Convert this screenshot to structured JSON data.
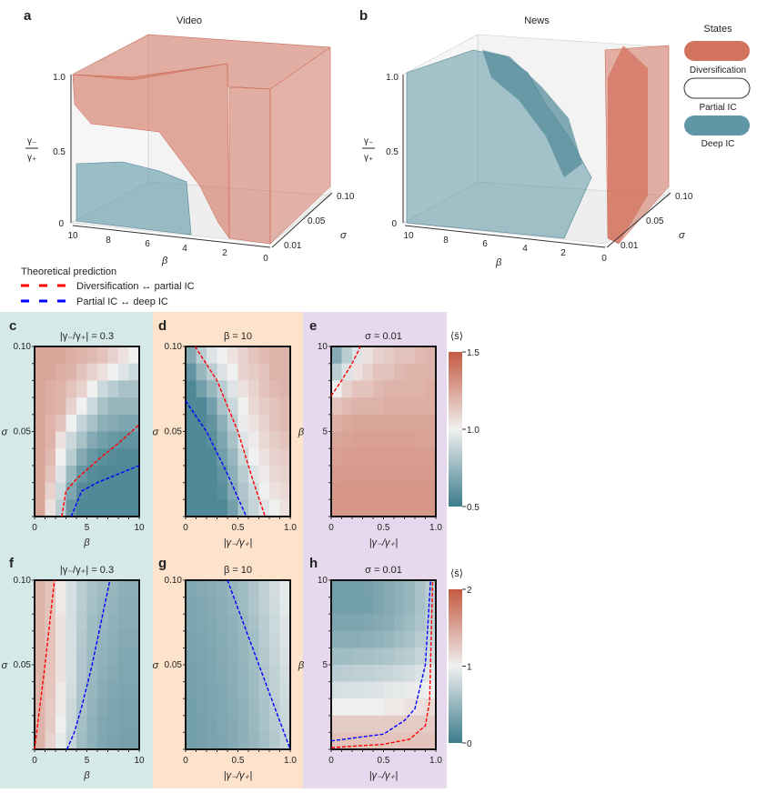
{
  "panel_letters": [
    "a",
    "b",
    "c",
    "d",
    "e",
    "f",
    "g",
    "h"
  ],
  "surface_panels": [
    {
      "title": "Video",
      "zlabel_num": "γ₋",
      "zlabel_den": "γ₊",
      "zticks": [
        "1.0",
        "0.5",
        "0"
      ],
      "beta_ticks": [
        "10",
        "8",
        "6",
        "4",
        "2",
        "0"
      ],
      "sigma_ticks": [
        "0.10",
        "0.05",
        "0.01"
      ],
      "xlabel": "β",
      "ylabel": "σ"
    },
    {
      "title": "News",
      "zlabel_num": "γ₋",
      "zlabel_den": "γ₊",
      "zticks": [
        "1.0",
        "0.5",
        "0"
      ],
      "beta_ticks": [
        "10",
        "8",
        "6",
        "4",
        "2",
        "0"
      ],
      "sigma_ticks": [
        "0.10",
        "0.05",
        "0.01"
      ],
      "xlabel": "β",
      "ylabel": "σ"
    }
  ],
  "states_legend": {
    "title": "States",
    "items": [
      {
        "label": "Diversification",
        "color": "#d4735f"
      },
      {
        "label": "Partial IC",
        "color": "#ffffff"
      },
      {
        "label": "Deep IC",
        "color": "#5f97a6"
      }
    ]
  },
  "prediction_legend": {
    "title": "Theoretical prediction",
    "items": [
      {
        "label": "Diversification ↔ partial IC",
        "color": "#ff0000"
      },
      {
        "label": "Partial IC ↔ deep IC",
        "color": "#0000ff"
      }
    ]
  },
  "colors": {
    "teal": "#3d7c8c",
    "white": "#f0f0f0",
    "red": "#c45a42",
    "bg_c": "#d5eae8",
    "bg_d": "#fde3cb",
    "bg_e": "#e6d9ee"
  },
  "colorbars": [
    {
      "label": "⟨s̄⟩",
      "range": [
        0.5,
        1.5
      ],
      "ticks": [
        "1.5",
        "1.0",
        "0.5"
      ]
    },
    {
      "label": "⟨s̄⟩",
      "range": [
        0,
        2
      ],
      "ticks": [
        "2",
        "1",
        "0"
      ]
    }
  ],
  "chart_data": [
    {
      "panel": "c",
      "type": "heatmap",
      "title": "|γ₋/γ₊| = 0.3",
      "xlabel": "β",
      "ylabel": "σ",
      "xlim": [
        0,
        10
      ],
      "ylim": [
        0,
        0.1
      ],
      "xticks": [
        "0",
        "5",
        "10"
      ],
      "yticks": [
        "0.10",
        "0.05"
      ],
      "crange": [
        0.5,
        1.5
      ],
      "z_rows_top_to_bottom": [
        [
          1.25,
          1.25,
          1.25,
          1.22,
          1.2,
          1.18,
          1.15,
          1.1,
          1.05,
          1.0
        ],
        [
          1.25,
          1.25,
          1.22,
          1.2,
          1.15,
          1.1,
          1.05,
          1.0,
          0.95,
          0.9
        ],
        [
          1.25,
          1.22,
          1.2,
          1.15,
          1.1,
          1.0,
          0.9,
          0.85,
          0.8,
          0.8
        ],
        [
          1.25,
          1.22,
          1.2,
          1.1,
          1.0,
          0.9,
          0.8,
          0.75,
          0.75,
          0.75
        ],
        [
          1.25,
          1.2,
          1.15,
          1.0,
          0.88,
          0.8,
          0.72,
          0.7,
          0.68,
          0.68
        ],
        [
          1.25,
          1.2,
          1.05,
          0.9,
          0.8,
          0.7,
          0.65,
          0.62,
          0.6,
          0.6
        ],
        [
          1.25,
          1.18,
          1.0,
          0.85,
          0.7,
          0.62,
          0.58,
          0.57,
          0.56,
          0.56
        ],
        [
          1.25,
          1.15,
          0.95,
          0.75,
          0.62,
          0.57,
          0.55,
          0.55,
          0.55,
          0.55
        ],
        [
          1.25,
          1.1,
          0.9,
          0.68,
          0.57,
          0.55,
          0.55,
          0.55,
          0.55,
          0.55
        ],
        [
          1.25,
          1.05,
          0.85,
          0.62,
          0.55,
          0.55,
          0.55,
          0.55,
          0.55,
          0.55
        ]
      ],
      "red_line": [
        [
          2.6,
          0
        ],
        [
          3.0,
          0.015
        ],
        [
          4,
          0.022
        ],
        [
          6,
          0.033
        ],
        [
          8,
          0.043
        ],
        [
          10,
          0.054
        ]
      ],
      "blue_line": [
        [
          3.5,
          0
        ],
        [
          4.5,
          0.015
        ],
        [
          6,
          0.02
        ],
        [
          8,
          0.025
        ],
        [
          10,
          0.03
        ]
      ]
    },
    {
      "panel": "d",
      "type": "heatmap",
      "title": "β = 10",
      "xlabel": "|γ₋/γ₊|",
      "ylabel": "σ",
      "xlim": [
        0,
        1
      ],
      "ylim": [
        0,
        0.1
      ],
      "xticks": [
        "0",
        "0.5",
        "1.0"
      ],
      "yticks": [
        "0.10",
        "0.05"
      ],
      "crange": [
        0.5,
        1.5
      ],
      "z_rows_top_to_bottom": [
        [
          0.7,
          0.85,
          0.95,
          1.0,
          1.05,
          1.1,
          1.15,
          1.18,
          1.2,
          1.2
        ],
        [
          0.6,
          0.75,
          0.85,
          0.95,
          1.0,
          1.1,
          1.12,
          1.15,
          1.2,
          1.2
        ],
        [
          0.55,
          0.65,
          0.75,
          0.85,
          0.95,
          1.05,
          1.1,
          1.15,
          1.18,
          1.2
        ],
        [
          0.55,
          0.55,
          0.65,
          0.8,
          0.9,
          1.0,
          1.08,
          1.12,
          1.15,
          1.18
        ],
        [
          0.55,
          0.55,
          0.6,
          0.72,
          0.85,
          0.98,
          1.05,
          1.1,
          1.15,
          1.18
        ],
        [
          0.55,
          0.55,
          0.58,
          0.68,
          0.8,
          0.95,
          1.02,
          1.08,
          1.12,
          1.15
        ],
        [
          0.55,
          0.55,
          0.55,
          0.65,
          0.75,
          0.9,
          1.0,
          1.05,
          1.1,
          1.12
        ],
        [
          0.55,
          0.55,
          0.55,
          0.6,
          0.72,
          0.85,
          0.95,
          1.02,
          1.08,
          1.1
        ],
        [
          0.55,
          0.55,
          0.55,
          0.58,
          0.7,
          0.82,
          0.9,
          1.0,
          1.05,
          1.08
        ],
        [
          0.55,
          0.55,
          0.55,
          0.55,
          0.65,
          0.8,
          0.88,
          0.95,
          1.0,
          1.05
        ]
      ],
      "red_line": [
        [
          0.09,
          0.1
        ],
        [
          0.3,
          0.08
        ],
        [
          0.5,
          0.05
        ],
        [
          0.65,
          0.02
        ],
        [
          0.76,
          0
        ]
      ],
      "blue_line": [
        [
          0,
          0.068
        ],
        [
          0.2,
          0.05
        ],
        [
          0.4,
          0.025
        ],
        [
          0.58,
          0
        ]
      ]
    },
    {
      "panel": "e",
      "type": "heatmap",
      "title": "σ = 0.01",
      "xlabel": "|γ₋/γ₊|",
      "ylabel": "β",
      "xlim": [
        0,
        1
      ],
      "ylim": [
        0,
        10
      ],
      "xticks": [
        "0",
        "0.5",
        "1.0"
      ],
      "yticks": [
        "10",
        "5"
      ],
      "crange": [
        0.5,
        1.5
      ],
      "z_rows_top_to_bottom": [
        [
          0.7,
          0.85,
          0.95,
          1.05,
          1.1,
          1.12,
          1.15,
          1.15,
          1.18,
          1.2
        ],
        [
          0.85,
          0.95,
          1.05,
          1.1,
          1.15,
          1.15,
          1.18,
          1.2,
          1.2,
          1.2
        ],
        [
          1.0,
          1.1,
          1.15,
          1.15,
          1.18,
          1.2,
          1.2,
          1.2,
          1.2,
          1.22
        ],
        [
          1.15,
          1.18,
          1.2,
          1.2,
          1.2,
          1.22,
          1.22,
          1.22,
          1.22,
          1.22
        ],
        [
          1.22,
          1.24,
          1.25,
          1.25,
          1.25,
          1.25,
          1.25,
          1.25,
          1.25,
          1.25
        ],
        [
          1.25,
          1.26,
          1.27,
          1.27,
          1.27,
          1.27,
          1.27,
          1.27,
          1.26,
          1.26
        ],
        [
          1.27,
          1.28,
          1.28,
          1.28,
          1.28,
          1.28,
          1.28,
          1.28,
          1.28,
          1.28
        ],
        [
          1.28,
          1.29,
          1.29,
          1.29,
          1.29,
          1.29,
          1.29,
          1.29,
          1.29,
          1.29
        ],
        [
          1.3,
          1.3,
          1.3,
          1.3,
          1.3,
          1.3,
          1.3,
          1.3,
          1.3,
          1.3
        ],
        [
          1.3,
          1.3,
          1.3,
          1.3,
          1.3,
          1.3,
          1.3,
          1.3,
          1.3,
          1.3
        ]
      ],
      "red_line": [
        [
          0,
          7.1
        ],
        [
          0.1,
          8
        ],
        [
          0.2,
          9
        ],
        [
          0.28,
          10
        ]
      ],
      "blue_line": []
    },
    {
      "panel": "f",
      "type": "heatmap",
      "title": "|γ₋/γ₊| = 0.3",
      "xlabel": "β",
      "ylabel": "σ",
      "xlim": [
        0,
        10
      ],
      "ylim": [
        0,
        0.1
      ],
      "xticks": [
        "0",
        "5",
        "10"
      ],
      "yticks": [
        "0.10",
        "0.05"
      ],
      "crange": [
        0,
        2
      ],
      "z_rows_top_to_bottom": [
        [
          1.4,
          1.3,
          1.05,
          0.85,
          0.7,
          0.6,
          0.55,
          0.5,
          0.45,
          0.45
        ],
        [
          1.4,
          1.3,
          1.05,
          0.85,
          0.7,
          0.58,
          0.52,
          0.48,
          0.43,
          0.43
        ],
        [
          1.4,
          1.3,
          1.1,
          0.85,
          0.68,
          0.56,
          0.5,
          0.46,
          0.42,
          0.42
        ],
        [
          1.4,
          1.3,
          1.1,
          0.85,
          0.66,
          0.55,
          0.48,
          0.44,
          0.4,
          0.4
        ],
        [
          1.4,
          1.3,
          1.1,
          0.85,
          0.65,
          0.53,
          0.46,
          0.42,
          0.38,
          0.38
        ],
        [
          1.4,
          1.28,
          1.1,
          0.85,
          0.64,
          0.52,
          0.44,
          0.4,
          0.37,
          0.37
        ],
        [
          1.4,
          1.28,
          1.05,
          0.83,
          0.62,
          0.5,
          0.42,
          0.38,
          0.35,
          0.35
        ],
        [
          1.4,
          1.25,
          1.05,
          0.8,
          0.6,
          0.48,
          0.4,
          0.36,
          0.34,
          0.34
        ],
        [
          1.4,
          1.25,
          1.0,
          0.78,
          0.58,
          0.46,
          0.38,
          0.35,
          0.33,
          0.33
        ],
        [
          1.4,
          1.2,
          0.95,
          0.75,
          0.55,
          0.45,
          0.37,
          0.34,
          0.32,
          0.32
        ]
      ],
      "red_line": [
        [
          0,
          0
        ],
        [
          1,
          0.05
        ],
        [
          1.9,
          0.1
        ]
      ],
      "blue_line": [
        [
          3.1,
          0
        ],
        [
          3.8,
          0.01
        ],
        [
          4.5,
          0.025
        ],
        [
          5.5,
          0.05
        ],
        [
          7.2,
          0.1
        ]
      ]
    },
    {
      "panel": "g",
      "type": "heatmap",
      "title": "β = 10",
      "xlabel": "|γ₋/γ₊|",
      "ylabel": "σ",
      "xlim": [
        0,
        1
      ],
      "ylim": [
        0,
        0.1
      ],
      "xticks": [
        "0",
        "0.5",
        "1.0"
      ],
      "yticks": [
        "0.10",
        "0.05"
      ],
      "crange": [
        0,
        2
      ],
      "z_rows_top_to_bottom": [
        [
          0.38,
          0.4,
          0.42,
          0.45,
          0.5,
          0.56,
          0.64,
          0.74,
          0.84,
          0.94
        ],
        [
          0.36,
          0.38,
          0.4,
          0.43,
          0.48,
          0.54,
          0.62,
          0.72,
          0.82,
          0.92
        ],
        [
          0.35,
          0.37,
          0.39,
          0.42,
          0.46,
          0.52,
          0.6,
          0.7,
          0.8,
          0.9
        ],
        [
          0.34,
          0.36,
          0.38,
          0.41,
          0.45,
          0.5,
          0.58,
          0.68,
          0.78,
          0.88
        ],
        [
          0.33,
          0.35,
          0.37,
          0.4,
          0.44,
          0.49,
          0.56,
          0.66,
          0.76,
          0.86
        ],
        [
          0.32,
          0.34,
          0.36,
          0.39,
          0.43,
          0.48,
          0.55,
          0.64,
          0.74,
          0.84
        ],
        [
          0.32,
          0.33,
          0.35,
          0.38,
          0.42,
          0.47,
          0.54,
          0.62,
          0.72,
          0.82
        ],
        [
          0.31,
          0.33,
          0.35,
          0.37,
          0.41,
          0.46,
          0.53,
          0.6,
          0.7,
          0.8
        ],
        [
          0.31,
          0.32,
          0.34,
          0.37,
          0.4,
          0.45,
          0.52,
          0.6,
          0.68,
          0.78
        ],
        [
          0.3,
          0.32,
          0.34,
          0.36,
          0.4,
          0.45,
          0.5,
          0.58,
          0.66,
          0.76
        ]
      ],
      "red_line": [],
      "blue_line": [
        [
          0.4,
          0.1
        ],
        [
          0.7,
          0.05
        ],
        [
          1.0,
          0
        ]
      ]
    },
    {
      "panel": "h",
      "type": "heatmap",
      "title": "σ = 0.01",
      "xlabel": "|γ₋/γ₊|",
      "ylabel": "β",
      "xlim": [
        0,
        1
      ],
      "ylim": [
        0,
        10
      ],
      "xticks": [
        "0",
        "0.5",
        "1.0"
      ],
      "yticks": [
        "10",
        "5"
      ],
      "crange": [
        0,
        2
      ],
      "z_rows_top_to_bottom": [
        [
          0.3,
          0.3,
          0.3,
          0.32,
          0.35,
          0.4,
          0.45,
          0.5,
          0.6,
          0.7
        ],
        [
          0.3,
          0.3,
          0.3,
          0.3,
          0.35,
          0.4,
          0.45,
          0.5,
          0.6,
          0.7
        ],
        [
          0.35,
          0.35,
          0.35,
          0.38,
          0.4,
          0.42,
          0.48,
          0.55,
          0.62,
          0.72
        ],
        [
          0.42,
          0.42,
          0.43,
          0.45,
          0.47,
          0.5,
          0.55,
          0.6,
          0.68,
          0.76
        ],
        [
          0.55,
          0.56,
          0.57,
          0.58,
          0.6,
          0.62,
          0.66,
          0.7,
          0.76,
          0.82
        ],
        [
          0.7,
          0.71,
          0.72,
          0.73,
          0.75,
          0.77,
          0.8,
          0.84,
          0.88,
          0.92
        ],
        [
          0.85,
          0.86,
          0.87,
          0.88,
          0.9,
          0.92,
          0.94,
          0.96,
          0.98,
          1.0
        ],
        [
          1.0,
          1.0,
          1.0,
          1.0,
          1.0,
          1.05,
          1.05,
          1.1,
          1.1,
          1.15
        ],
        [
          1.25,
          1.25,
          1.25,
          1.25,
          1.25,
          1.25,
          1.25,
          1.25,
          1.25,
          1.25
        ],
        [
          1.3,
          1.3,
          1.3,
          1.3,
          1.3,
          1.3,
          1.3,
          1.3,
          1.3,
          1.3
        ]
      ],
      "red_line": [
        [
          0,
          0.1
        ],
        [
          0.5,
          0.3
        ],
        [
          0.75,
          0.6
        ],
        [
          0.9,
          1.4
        ],
        [
          0.94,
          2.8
        ],
        [
          0.97,
          10
        ]
      ],
      "blue_line": [
        [
          0,
          0.5
        ],
        [
          0.5,
          0.9
        ],
        [
          0.7,
          1.7
        ],
        [
          0.8,
          2.4
        ],
        [
          0.9,
          5
        ],
        [
          0.95,
          10
        ]
      ]
    }
  ]
}
